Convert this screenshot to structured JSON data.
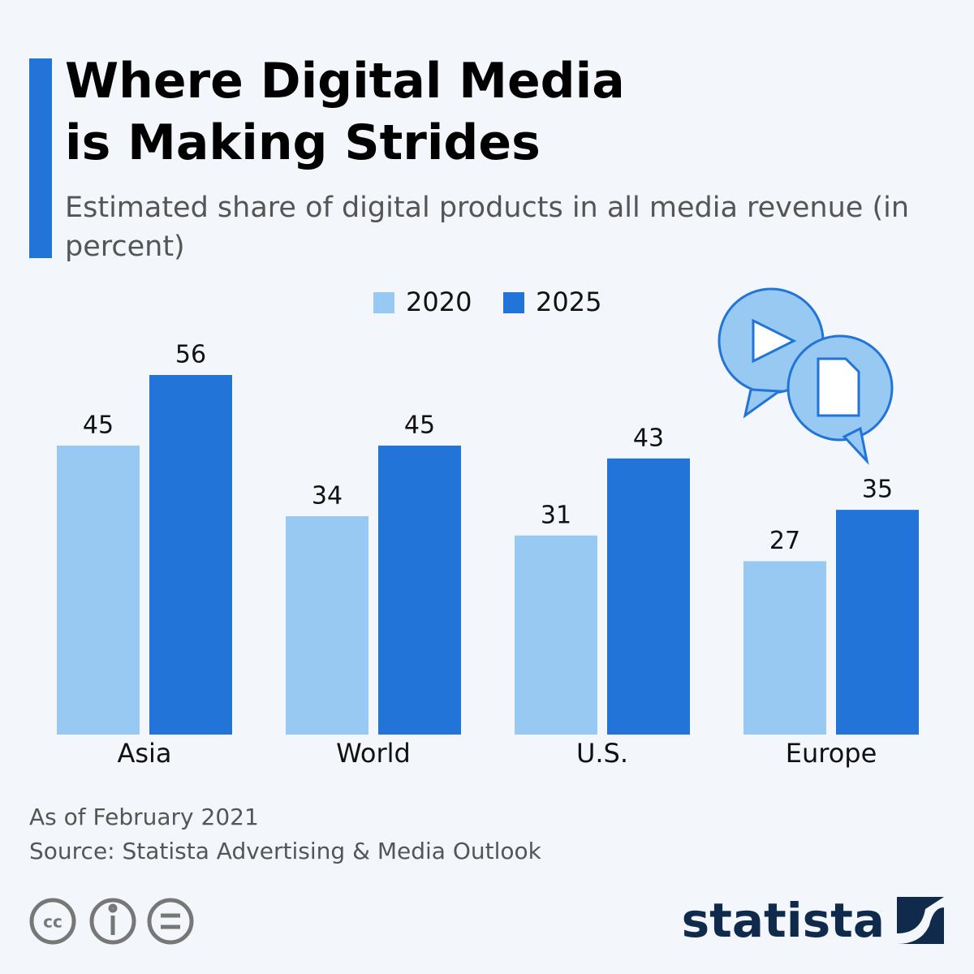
{
  "chart_data": {
    "type": "bar",
    "title": "Where Digital Media is Making Strides",
    "subtitle": "Estimated share of digital products in all media revenue (in percent)",
    "categories": [
      "Asia",
      "World",
      "U.S.",
      "Europe"
    ],
    "series": [
      {
        "name": "2020",
        "color": "#97c9f2",
        "values": [
          45,
          34,
          31,
          27
        ]
      },
      {
        "name": "2025",
        "color": "#2274d8",
        "values": [
          56,
          45,
          43,
          35
        ]
      }
    ],
    "notes": [
      "As of February 2021",
      "Source: Statista Advertising & Media Outlook"
    ],
    "brand": "statista"
  }
}
